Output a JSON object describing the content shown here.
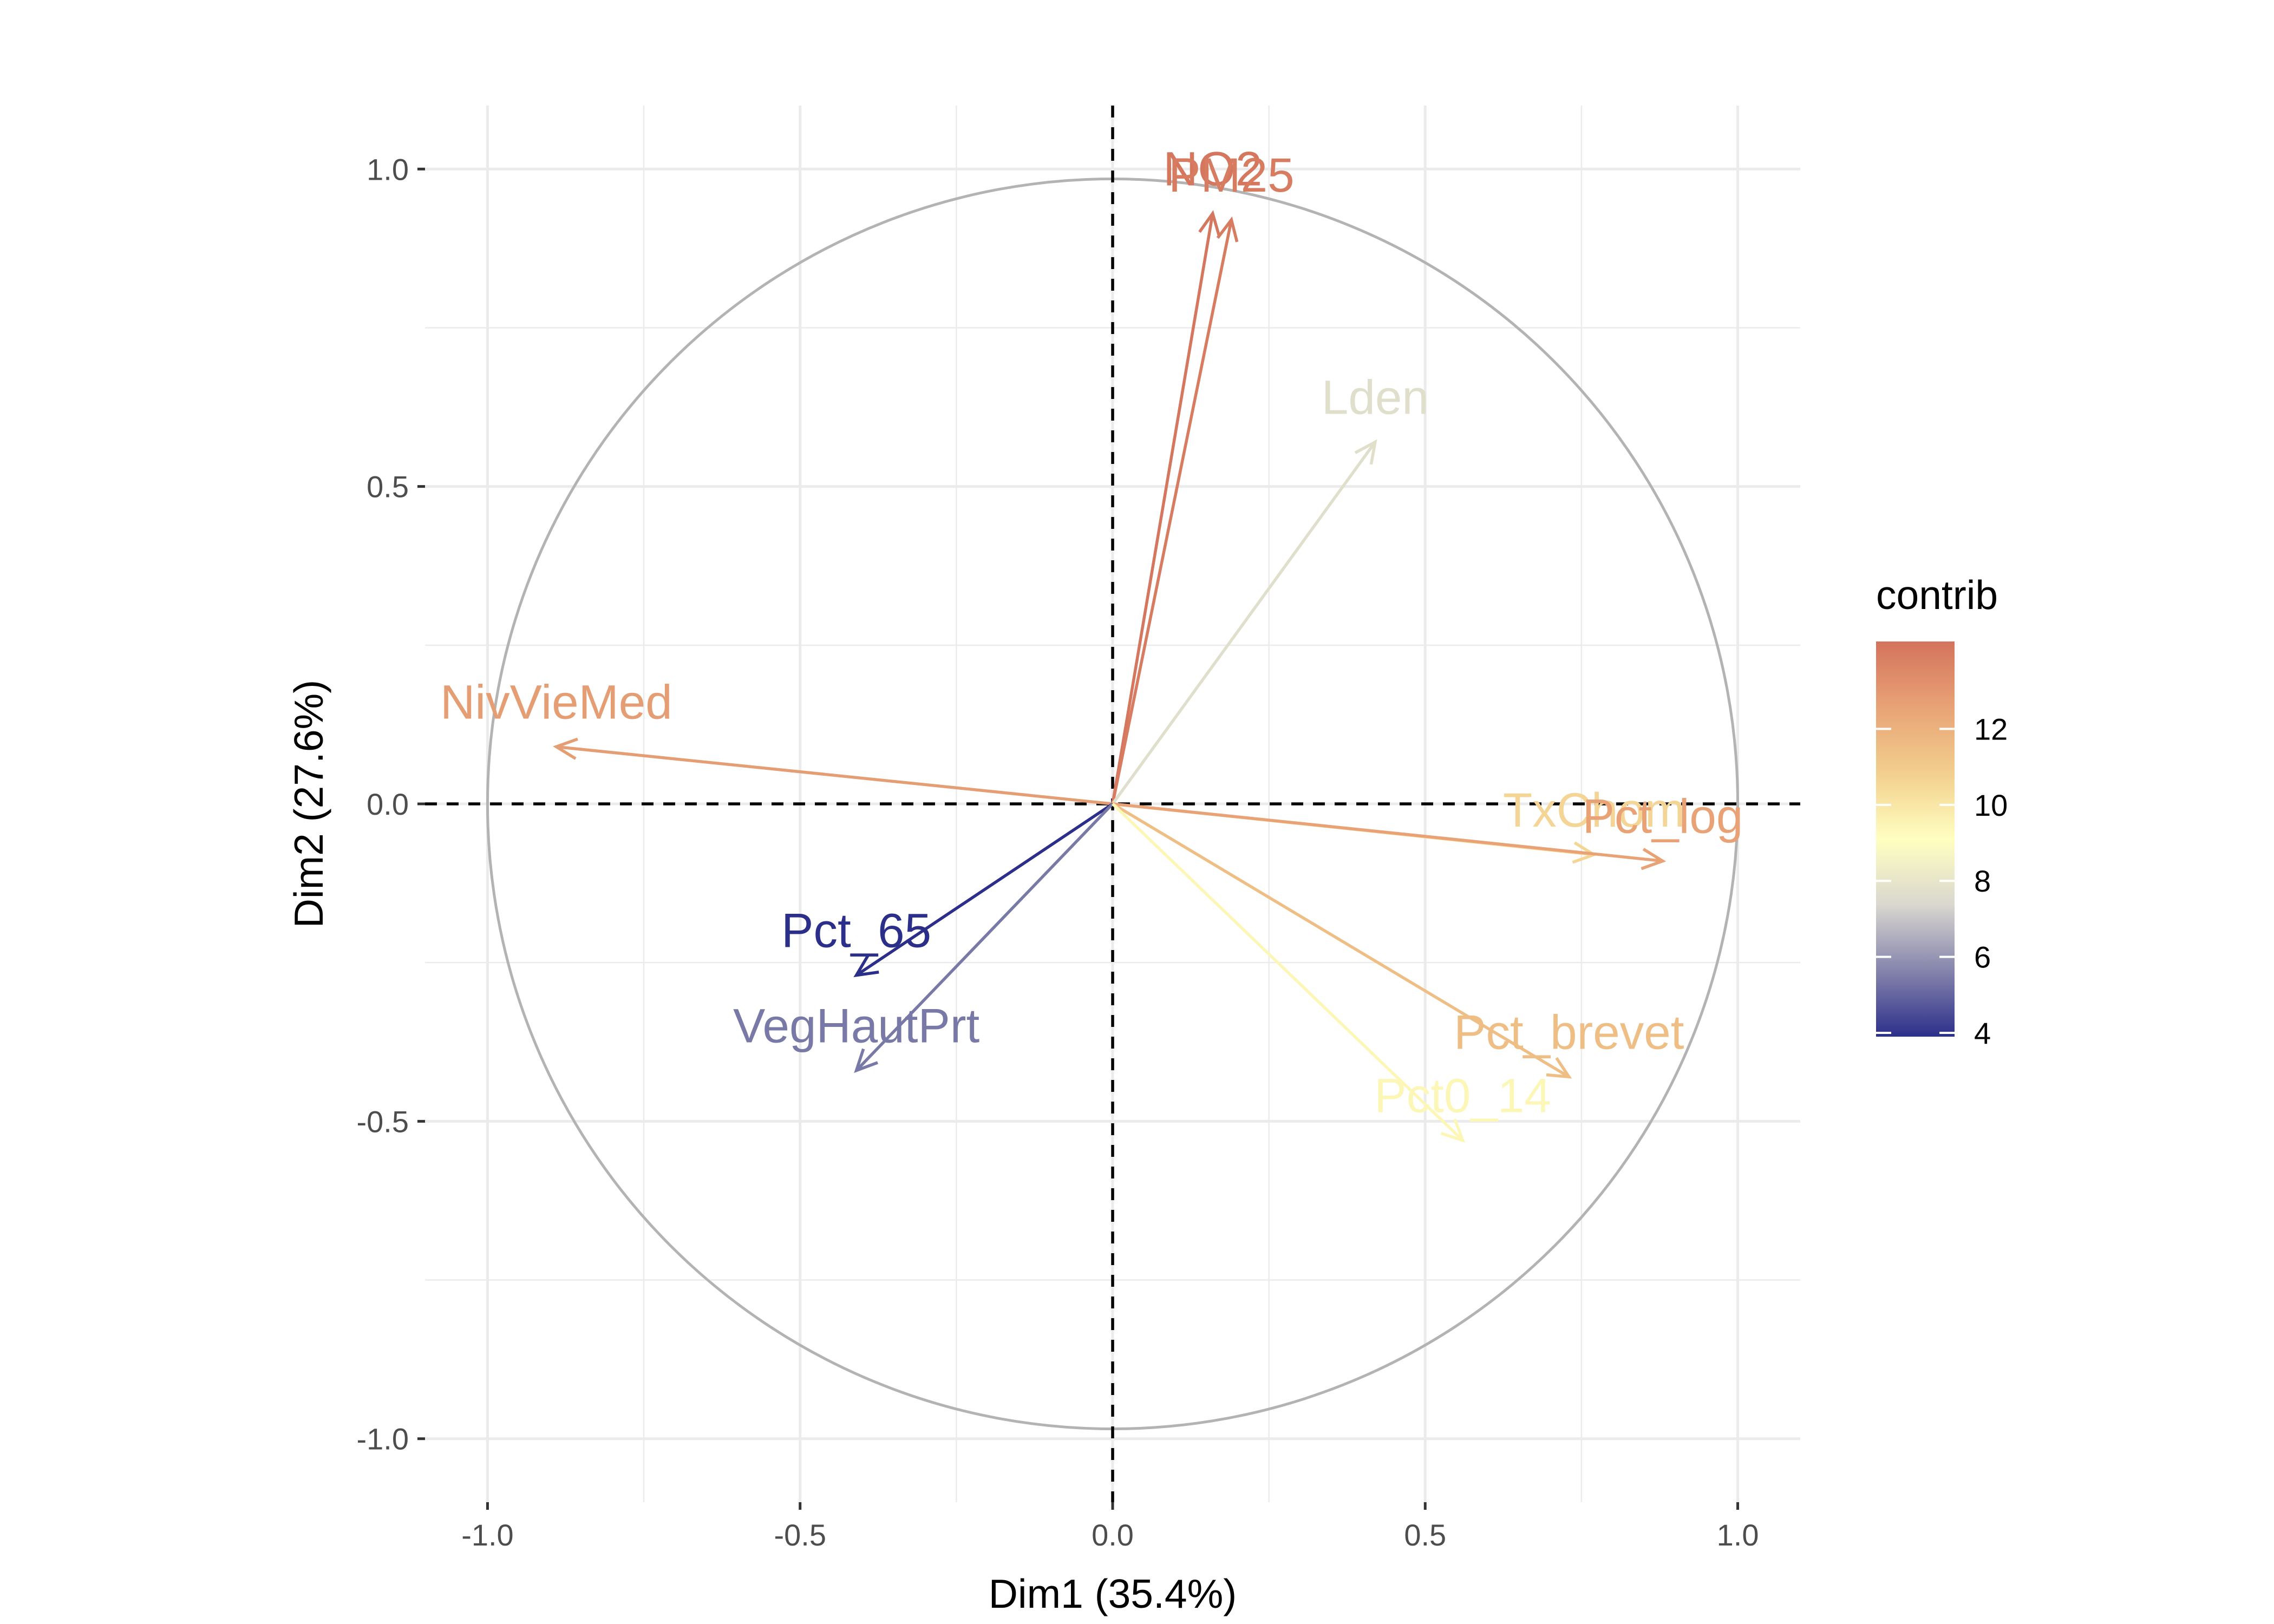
{
  "chart_data": {
    "type": "scatter",
    "subtype": "pca-variable-correlation-circle",
    "title": "",
    "xlabel": "Dim1 (35.4%)",
    "ylabel": "Dim2 (27.6%)",
    "xlim": [
      -1.1,
      1.1
    ],
    "ylim": [
      -1.1,
      1.1
    ],
    "xticks": [
      -1.0,
      -0.5,
      0.0,
      0.5,
      1.0
    ],
    "yticks": [
      -1.0,
      -0.5,
      0.0,
      0.5,
      1.0
    ],
    "xtick_labels": [
      "-1.0",
      "-0.5",
      "0.0",
      "0.5",
      "1.0"
    ],
    "ytick_labels": [
      "-1.0",
      "-0.5",
      "0.0",
      "0.5",
      "1.0"
    ],
    "grid": true,
    "unit_circle": true,
    "zero_lines": "dashed",
    "variables": [
      {
        "name": "NO2",
        "x": 0.16,
        "y": 0.93,
        "contrib": 14.2
      },
      {
        "name": "PM25",
        "x": 0.19,
        "y": 0.92,
        "contrib": 14.0
      },
      {
        "name": "Lden",
        "x": 0.42,
        "y": 0.57,
        "contrib": 7.7
      },
      {
        "name": "NivVieMed",
        "x": -0.89,
        "y": 0.09,
        "contrib": 12.8
      },
      {
        "name": "Pct_65",
        "x": -0.41,
        "y": -0.27,
        "contrib": 3.9
      },
      {
        "name": "VegHautPrt",
        "x": -0.41,
        "y": -0.42,
        "contrib": 5.4
      },
      {
        "name": "TxChom",
        "x": 0.77,
        "y": -0.08,
        "contrib": 10.6
      },
      {
        "name": "Pct_log",
        "x": 0.88,
        "y": -0.09,
        "contrib": 12.6
      },
      {
        "name": "Pct_brevet",
        "x": 0.73,
        "y": -0.43,
        "contrib": 11.5
      },
      {
        "name": "Pct0_14",
        "x": 0.56,
        "y": -0.53,
        "contrib": 9.4
      }
    ],
    "legend": {
      "title": "contrib",
      "position": "right",
      "ticks": [
        4,
        6,
        8,
        10,
        12
      ],
      "range": [
        3.9,
        14.3
      ],
      "gradient": [
        "#2c2f8a",
        "#8584ac",
        "#d9d7cf",
        "#ffffc0",
        "#f2cf8e",
        "#e8a376",
        "#d4735c"
      ]
    }
  }
}
